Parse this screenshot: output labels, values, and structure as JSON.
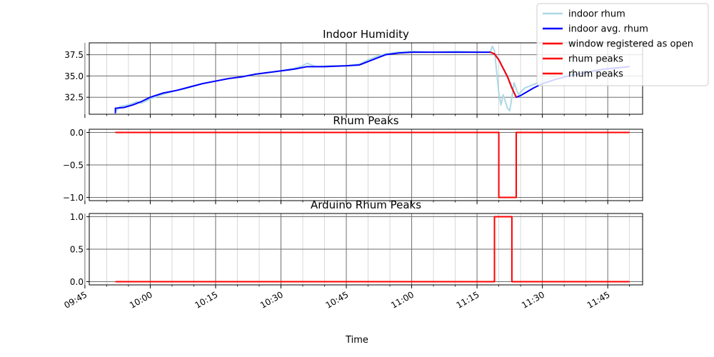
{
  "chart_data": [
    {
      "type": "line",
      "title": "Indoor Humidity",
      "ylim": [
        30.5,
        38.9
      ],
      "yticks": [
        32.5,
        35.0,
        37.5
      ],
      "ytick_labels": [
        "32.5",
        "35.0",
        "37.5"
      ],
      "grid": true,
      "series": [
        {
          "name": "indoor rhum",
          "color": "#add8e6",
          "points": [
            [
              "09:52",
              30.8
            ],
            [
              "09:53",
              31.4
            ],
            [
              "09:55",
              31.6
            ],
            [
              "09:57",
              32.0
            ],
            [
              "09:58",
              31.8
            ],
            [
              "10:00",
              32.3
            ],
            [
              "10:02",
              32.7
            ],
            [
              "10:04",
              33.0
            ],
            [
              "10:06",
              33.3
            ],
            [
              "10:08",
              33.5
            ],
            [
              "10:10",
              33.8
            ],
            [
              "10:12",
              34.1
            ],
            [
              "10:15",
              34.4
            ],
            [
              "10:18",
              34.7
            ],
            [
              "10:21",
              34.9
            ],
            [
              "10:24",
              35.2
            ],
            [
              "10:27",
              35.4
            ],
            [
              "10:30",
              35.6
            ],
            [
              "10:33",
              35.9
            ],
            [
              "10:35",
              36.2
            ],
            [
              "10:36",
              36.5
            ],
            [
              "10:38",
              36.1
            ],
            [
              "10:41",
              36.2
            ],
            [
              "10:45",
              36.2
            ],
            [
              "10:48",
              36.4
            ],
            [
              "10:50",
              36.9
            ],
            [
              "10:52",
              37.3
            ],
            [
              "10:54",
              37.6
            ],
            [
              "10:57",
              37.8
            ],
            [
              "11:00",
              37.9
            ],
            [
              "11:05",
              37.8
            ],
            [
              "11:10",
              37.9
            ],
            [
              "11:15",
              37.8
            ],
            [
              "11:18",
              37.8
            ],
            [
              "11:18.5",
              38.5
            ],
            [
              "11:19",
              38.0
            ],
            [
              "11:19.5",
              35.5
            ],
            [
              "11:20",
              33.0
            ],
            [
              "11:20.5",
              31.6
            ],
            [
              "11:21",
              32.8
            ],
            [
              "11:21.5",
              32.0
            ],
            [
              "11:22",
              31.2
            ],
            [
              "11:22.5",
              30.9
            ],
            [
              "11:23",
              32.5
            ],
            [
              "11:23.5",
              34.2
            ],
            [
              "11:24",
              33.5
            ],
            [
              "11:24.5",
              32.8
            ],
            [
              "11:25",
              33.1
            ],
            [
              "11:26",
              33.6
            ],
            [
              "11:28",
              34.0
            ],
            [
              "11:30",
              34.4
            ],
            [
              "11:32",
              34.8
            ],
            [
              "11:35",
              35.1
            ],
            [
              "11:38",
              35.4
            ],
            [
              "11:42",
              35.7
            ],
            [
              "11:46",
              35.9
            ],
            [
              "11:50",
              36.1
            ]
          ]
        },
        {
          "name": "indoor avg. rhum",
          "color": "#0000ff",
          "points": [
            [
              "09:52",
              30.6
            ],
            [
              "09:52",
              31.2
            ],
            [
              "09:54",
              31.3
            ],
            [
              "09:56",
              31.6
            ],
            [
              "09:58",
              32.0
            ],
            [
              "10:00",
              32.5
            ],
            [
              "10:03",
              33.0
            ],
            [
              "10:06",
              33.3
            ],
            [
              "10:09",
              33.7
            ],
            [
              "10:12",
              34.1
            ],
            [
              "10:15",
              34.4
            ],
            [
              "10:18",
              34.7
            ],
            [
              "10:21",
              34.9
            ],
            [
              "10:24",
              35.2
            ],
            [
              "10:27",
              35.4
            ],
            [
              "10:30",
              35.6
            ],
            [
              "10:33",
              35.8
            ],
            [
              "10:36",
              36.1
            ],
            [
              "10:40",
              36.1
            ],
            [
              "10:45",
              36.2
            ],
            [
              "10:48",
              36.3
            ],
            [
              "10:51",
              36.9
            ],
            [
              "10:54",
              37.5
            ],
            [
              "10:57",
              37.7
            ],
            [
              "11:00",
              37.8
            ],
            [
              "11:05",
              37.8
            ],
            [
              "11:10",
              37.8
            ],
            [
              "11:15",
              37.8
            ],
            [
              "11:18",
              37.8
            ],
            [
              "11:19",
              37.6
            ],
            [
              "11:20",
              36.9
            ],
            [
              "11:21",
              35.9
            ],
            [
              "11:22",
              34.9
            ],
            [
              "11:23",
              33.6
            ],
            [
              "11:24",
              32.5
            ],
            [
              "11:25",
              32.7
            ],
            [
              "11:26",
              33.0
            ],
            [
              "11:28",
              33.6
            ],
            [
              "11:30",
              34.1
            ],
            [
              "11:33",
              34.6
            ],
            [
              "11:36",
              35.0
            ],
            [
              "11:40",
              35.4
            ],
            [
              "11:44",
              35.8
            ],
            [
              "11:50",
              36.1
            ]
          ]
        },
        {
          "name": "window registered as open",
          "color": "#ff0000",
          "points": [
            [
              "11:18",
              37.8
            ],
            [
              "11:19",
              37.6
            ],
            [
              "11:20",
              36.9
            ],
            [
              "11:21",
              35.9
            ],
            [
              "11:22",
              34.9
            ],
            [
              "11:23",
              33.6
            ],
            [
              "11:24",
              32.5
            ]
          ]
        }
      ]
    },
    {
      "type": "line",
      "title": "Rhum Peaks",
      "ylim": [
        -1.05,
        0.05
      ],
      "yticks": [
        -1.0,
        -0.5,
        0.0
      ],
      "ytick_labels": [
        "−1.0",
        "−0.5",
        "0.0"
      ],
      "grid": true,
      "series": [
        {
          "name": "rhum peaks",
          "color": "#ff0000",
          "points": [
            [
              "09:52",
              0
            ],
            [
              "11:20",
              0
            ],
            [
              "11:20",
              -1
            ],
            [
              "11:24",
              -1
            ],
            [
              "11:24",
              0
            ],
            [
              "11:50",
              0
            ]
          ]
        }
      ]
    },
    {
      "type": "line",
      "title": "Arduino Rhum Peaks",
      "ylim": [
        -0.05,
        1.05
      ],
      "yticks": [
        0.0,
        0.5,
        1.0
      ],
      "ytick_labels": [
        "0.0",
        "0.5",
        "1.0"
      ],
      "grid": true,
      "series": [
        {
          "name": "rhum peaks",
          "color": "#ff0000",
          "points": [
            [
              "09:52",
              0
            ],
            [
              "11:19",
              0
            ],
            [
              "11:19",
              1
            ],
            [
              "11:23",
              1
            ],
            [
              "11:23",
              0
            ],
            [
              "11:50",
              0
            ]
          ]
        }
      ]
    }
  ],
  "x_axis": {
    "label": "Time",
    "range": [
      "09:46",
      "11:53"
    ],
    "ticks": [
      "09:45",
      "10:00",
      "10:15",
      "10:30",
      "10:45",
      "11:00",
      "11:15",
      "11:30",
      "11:45"
    ]
  },
  "legend": {
    "placement": "top-right",
    "entries": [
      {
        "label": "indoor rhum",
        "color": "#add8e6"
      },
      {
        "label": "indoor avg. rhum",
        "color": "#0000ff"
      },
      {
        "label": "window registered as open",
        "color": "#ff0000"
      },
      {
        "label": "rhum peaks",
        "color": "#ff0000"
      },
      {
        "label": "rhum peaks",
        "color": "#ff0000"
      }
    ]
  }
}
